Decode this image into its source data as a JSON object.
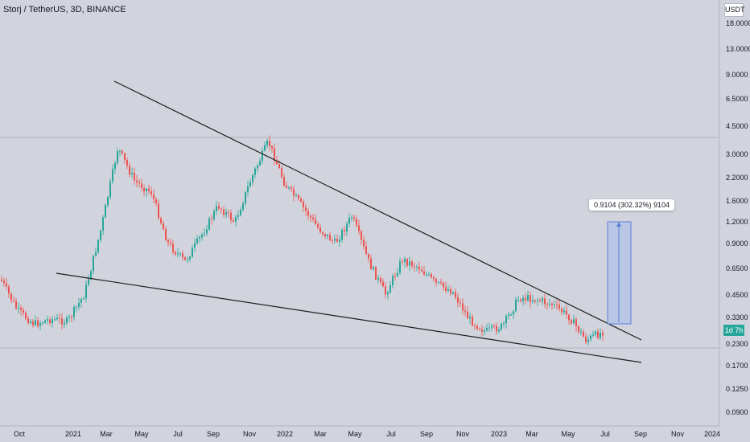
{
  "header": {
    "symbol_line": "Storj / TetherUS, 3D, BINANCE"
  },
  "currency_button": "USDT",
  "measure_label": "0.9104 (302.32%) 9104",
  "price_badge": "1d 7h",
  "colors": {
    "background": "#d1d4dc",
    "up": "#26a69a",
    "down": "#ef5350",
    "trendline": "#1e1e1e",
    "measure_fill": "#b5c3e8",
    "measure_stroke": "#5b7fd6",
    "badge": "#26a69a"
  },
  "chart_data": {
    "type": "candlestick",
    "title": "Storj / TetherUS, 3D, BINANCE",
    "y_scale": "log",
    "ylim": [
      0.075,
      21
    ],
    "y_ticks": [
      "18.0000",
      "13.0000",
      "9.0000",
      "6.5000",
      "4.5000",
      "3.0000",
      "2.2000",
      "1.6000",
      "1.2000",
      "0.9000",
      "0.6500",
      "0.4500",
      "0.3300",
      "0.2300",
      "0.1700",
      "0.1250",
      "0.0900"
    ],
    "x_ticks": [
      "Oct",
      "2021",
      "Mar",
      "May",
      "Jul",
      "Sep",
      "Nov",
      "2022",
      "Mar",
      "May",
      "Jul",
      "Sep",
      "Nov",
      "2023",
      "Mar",
      "May",
      "Jul",
      "Sep",
      "Nov",
      "2024"
    ],
    "approx_close_path": [
      [
        "2020-09",
        0.55
      ],
      [
        "2020-10",
        0.36
      ],
      [
        "2020-11",
        0.3
      ],
      [
        "2020-12",
        0.32
      ],
      [
        "2021-01",
        0.31
      ],
      [
        "2021-02",
        0.45
      ],
      [
        "2021-03",
        1.1
      ],
      [
        "2021-03-15",
        3.3
      ],
      [
        "2021-04",
        2.1
      ],
      [
        "2021-05",
        1.8
      ],
      [
        "2021-06",
        0.9
      ],
      [
        "2021-07",
        0.7
      ],
      [
        "2021-08",
        1.0
      ],
      [
        "2021-09",
        1.5
      ],
      [
        "2021-10",
        1.2
      ],
      [
        "2021-11",
        2.2
      ],
      [
        "2021-11-20",
        3.6
      ],
      [
        "2021-12",
        2.0
      ],
      [
        "2022-01",
        1.5
      ],
      [
        "2022-02",
        1.1
      ],
      [
        "2022-03",
        0.9
      ],
      [
        "2022-04",
        1.3
      ],
      [
        "2022-05",
        0.7
      ],
      [
        "2022-06",
        0.45
      ],
      [
        "2022-07",
        0.72
      ],
      [
        "2022-08",
        0.65
      ],
      [
        "2022-09",
        0.52
      ],
      [
        "2022-10",
        0.47
      ],
      [
        "2022-11",
        0.32
      ],
      [
        "2022-12",
        0.27
      ],
      [
        "2023-01",
        0.29
      ],
      [
        "2023-02",
        0.43
      ],
      [
        "2023-03",
        0.42
      ],
      [
        "2023-04",
        0.39
      ],
      [
        "2023-05",
        0.33
      ],
      [
        "2023-06",
        0.24
      ],
      [
        "2023-06-20",
        0.27
      ]
    ],
    "trendlines": [
      {
        "from": [
          "2021-03",
          8.2
        ],
        "to": [
          "2023-09",
          0.27
        ]
      },
      {
        "from": [
          "2020-12",
          0.62
        ],
        "to": [
          "2023-09",
          0.18
        ]
      }
    ],
    "measure": {
      "from_price": 0.3,
      "to_price": 1.21,
      "change": "0.9104 (302.32%)"
    },
    "horizontal_levels": [
      4.0,
      0.22
    ]
  }
}
